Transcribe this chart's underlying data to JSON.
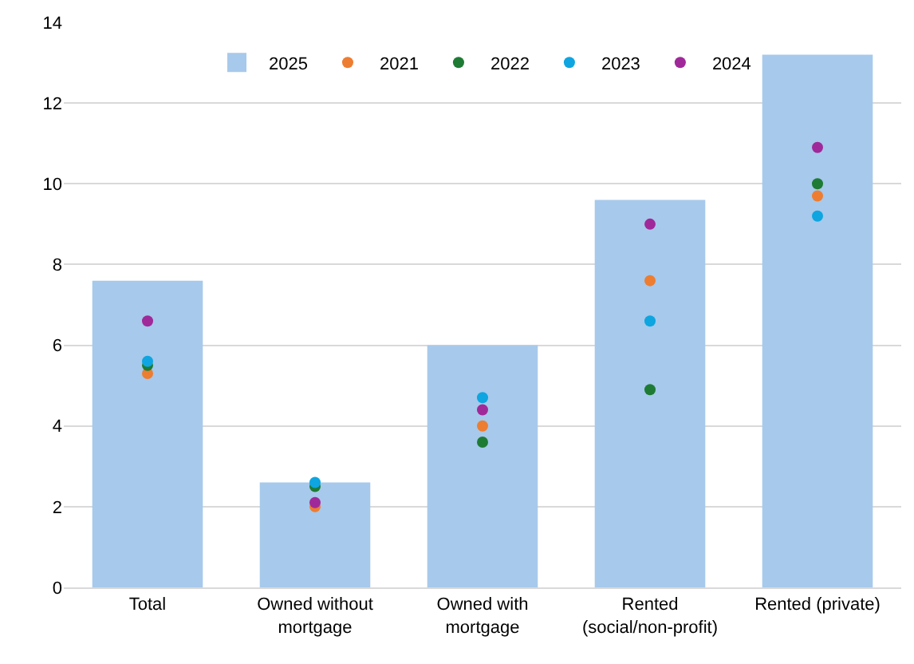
{
  "chart_data": {
    "type": "bar",
    "categories": [
      "Total",
      "Owned without mortgage",
      "Owned with mortgage",
      "Rented (social/non-profit)",
      "Rented (private)"
    ],
    "series": [
      {
        "name": "2025",
        "color": "#a7c9eb",
        "values": [
          7.6,
          2.6,
          6.0,
          9.6,
          13.2
        ]
      },
      {
        "name": "2021",
        "type": "scatter",
        "color": "#ed7d31",
        "values": [
          5.3,
          2.0,
          4.0,
          7.6,
          9.7
        ]
      },
      {
        "name": "2022",
        "type": "scatter",
        "color": "#1e7b34",
        "values": [
          5.5,
          2.5,
          3.6,
          4.9,
          10.0
        ]
      },
      {
        "name": "2023",
        "type": "scatter",
        "color": "#0ea5e0",
        "values": [
          5.6,
          2.6,
          4.7,
          6.6,
          9.2
        ]
      },
      {
        "name": "2024",
        "type": "scatter",
        "color": "#a0299a",
        "values": [
          6.6,
          2.1,
          4.4,
          9.0,
          10.9
        ]
      }
    ],
    "ylim": [
      0,
      14
    ],
    "yticks": [
      0,
      2,
      4,
      6,
      8,
      10,
      12,
      14
    ],
    "grid": "y",
    "legend": "top",
    "marker": "circle"
  }
}
